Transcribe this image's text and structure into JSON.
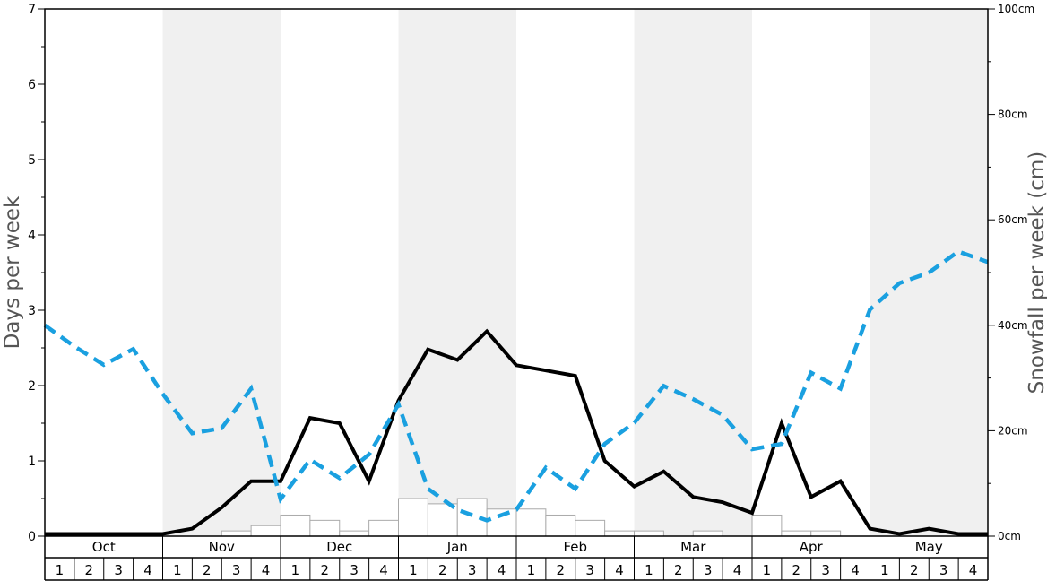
{
  "chart_data": {
    "type": "line",
    "ylabel_left": "Days per week",
    "ylabel_right": "Snowfall per week (cm)",
    "ylim_left": [
      0,
      7
    ],
    "ylim_right": [
      0,
      100
    ],
    "left_ticks": [
      "0",
      "1",
      "2",
      "3",
      "4",
      "5",
      "6",
      "7"
    ],
    "right_ticks": [
      "0cm",
      "20cm",
      "40cm",
      "60cm",
      "80cm",
      "100cm"
    ],
    "months": [
      "Oct",
      "Nov",
      "Dec",
      "Jan",
      "Feb",
      "Mar",
      "Apr",
      "May"
    ],
    "week_labels": [
      "1",
      "2",
      "3",
      "4"
    ],
    "shaded_months": [
      "Nov",
      "Jan",
      "Mar",
      "May"
    ],
    "grid": false,
    "series": [
      {
        "kind": "bar",
        "axis": "left",
        "values": [
          0,
          0,
          0,
          0,
          0,
          0,
          0.07,
          0.14,
          0.28,
          0.21,
          0.07,
          0.21,
          0.5,
          0.43,
          0.5,
          0.36,
          0.36,
          0.28,
          0.21,
          0.07,
          0.07,
          0,
          0.07,
          0,
          0.28,
          0.07,
          0.07,
          0,
          0,
          0,
          0,
          0
        ]
      },
      {
        "kind": "line",
        "axis": "left",
        "style": "solid",
        "color": "#000000",
        "values": [
          0.03,
          0.03,
          0.03,
          0.03,
          0.03,
          0.1,
          0.38,
          0.73,
          0.73,
          1.57,
          1.5,
          0.73,
          1.8,
          2.48,
          2.34,
          2.72,
          2.27,
          2.2,
          2.13,
          1.0,
          0.66,
          0.86,
          0.52,
          0.45,
          0.31,
          1.5,
          0.52,
          0.73,
          0.1,
          0.03,
          0.1,
          0.03,
          0.03
        ]
      },
      {
        "kind": "line",
        "axis": "right",
        "style": "dashed",
        "color": "#1aa0e0",
        "values": [
          40,
          36,
          32.5,
          35.5,
          27,
          19.5,
          20.5,
          28,
          7,
          14.5,
          11,
          15.5,
          25,
          9,
          5,
          3,
          5,
          13,
          9,
          17.5,
          21.5,
          28.5,
          26,
          23,
          16.5,
          17.5,
          31,
          28,
          43,
          48,
          50,
          54,
          52
        ]
      }
    ]
  }
}
